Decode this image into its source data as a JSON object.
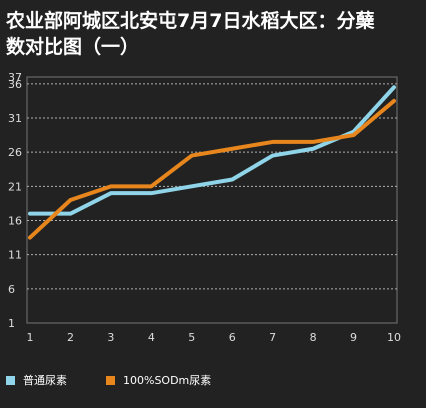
{
  "title": {
    "line1": "农业部阿城区北安屯7月7日水稻大区：分蘖",
    "line2": "数对比图（一）"
  },
  "chart_data": {
    "type": "line",
    "title": "农业部阿城区北安屯7月7日水稻大区：分蘖数对比图（一）",
    "x": [
      1,
      2,
      3,
      4,
      5,
      6,
      7,
      8,
      9,
      10
    ],
    "y_ticks": [
      1,
      6,
      11,
      16,
      21,
      26,
      31,
      36,
      37
    ],
    "ylim": [
      1,
      37
    ],
    "grid": true,
    "legend_position": "bottom-left",
    "series": [
      {
        "name": "普通尿素",
        "color": "#8fd4e8",
        "values": [
          17,
          17,
          20,
          20,
          21,
          22,
          25.5,
          26.5,
          29,
          35.5
        ]
      },
      {
        "name": "100%SODm尿素",
        "color": "#e8861e",
        "values": [
          13.5,
          19,
          21,
          21,
          25.5,
          26.5,
          27.5,
          27.5,
          28.5,
          33.5
        ]
      }
    ]
  }
}
